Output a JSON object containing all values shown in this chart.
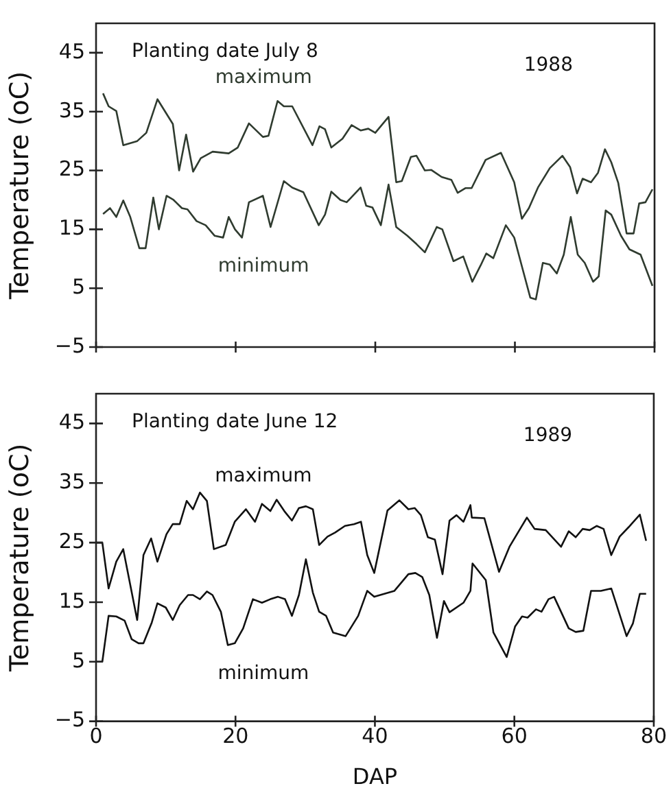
{
  "chart_data": [
    {
      "type": "line",
      "ylabel": "Temperature (oC)",
      "annotations": [
        "Planting date July 8",
        "1988"
      ],
      "xlim": [
        0,
        80
      ],
      "xticks": [
        {
          "value": 0,
          "label": null
        },
        {
          "value": 20,
          "label": null
        },
        {
          "value": 40,
          "label": null
        },
        {
          "value": 60,
          "label": null
        },
        {
          "value": 80,
          "label": null
        }
      ],
      "ylim": [
        -5,
        50
      ],
      "yticks": [
        -5,
        5,
        15,
        25,
        35,
        45
      ],
      "tick_labels": "y",
      "grid": false,
      "legend": false,
      "marker": "none",
      "line_style": "solid",
      "series": [
        {
          "name": "maximum",
          "color": "#2f3b2f",
          "x": [
            1,
            1.8,
            2.9,
            3.9,
            5.9,
            7.2,
            8.8,
            11,
            11.9,
            12.9,
            13.9,
            15,
            16.7,
            19,
            20.3,
            21.9,
            23.9,
            24.7,
            26,
            26.9,
            28.1,
            31,
            32,
            32.8,
            33.7,
            35.3,
            36.6,
            37.9,
            39,
            40,
            41.9,
            43,
            43.8,
            45.1,
            45.9,
            47.1,
            48,
            49.5,
            50.9,
            51.8,
            52.9,
            53.8,
            55.8,
            58,
            59.9,
            61,
            62,
            63.3,
            65,
            66.8,
            67.9,
            68.9,
            69.7,
            70.9,
            71.9,
            72.9,
            73.8,
            74.8,
            76,
            77,
            77.8,
            78.7,
            79.7
          ],
          "values": [
            38.1,
            35.9,
            35.1,
            29.3,
            30,
            31.4,
            37.1,
            32.9,
            25,
            31.1,
            24.8,
            27.1,
            28.2,
            27.9,
            28.9,
            33,
            30.7,
            30.9,
            36.8,
            35.9,
            35.9,
            29.3,
            32.5,
            32,
            28.9,
            30.4,
            32.7,
            31.8,
            32.1,
            31.4,
            34.1,
            23,
            23.2,
            27.3,
            27.5,
            25,
            25.1,
            23.9,
            23.4,
            21.2,
            22,
            22,
            26.8,
            28,
            23,
            16.8,
            18.6,
            22.1,
            25.4,
            27.5,
            25.6,
            21.1,
            23.6,
            23,
            24.6,
            28.6,
            26.4,
            22.9,
            14.3,
            14.3,
            19.4,
            19.6,
            21.8
          ]
        },
        {
          "name": "minimum",
          "color": "#2f3b2f",
          "x": [
            1,
            2,
            2.9,
            3.9,
            4.9,
            6.2,
            7.1,
            8.2,
            9,
            10.1,
            11.1,
            12.3,
            13.1,
            14.4,
            15.7,
            17,
            18.2,
            19,
            19.9,
            20.9,
            21.9,
            23.9,
            25,
            26.9,
            28.1,
            29.7,
            31.9,
            32.8,
            33.7,
            35,
            35.9,
            37.9,
            38.7,
            39.6,
            40.8,
            41.9,
            43,
            44.6,
            45.9,
            47.1,
            48.8,
            49.6,
            51.2,
            52.6,
            53.9,
            55.1,
            55.9,
            56.9,
            58.7,
            59.9,
            62.2,
            63,
            64,
            65,
            66,
            67,
            68,
            69,
            70,
            71.2,
            72,
            73,
            73.8,
            75.2,
            76.4,
            78,
            79.7
          ],
          "values": [
            17.6,
            18.6,
            17.1,
            19.9,
            17.1,
            11.8,
            11.8,
            20.4,
            15,
            20.7,
            20,
            18.6,
            18.4,
            16.4,
            15.7,
            13.9,
            13.6,
            17.1,
            15,
            13.6,
            19.6,
            20.7,
            15.4,
            23.2,
            22.1,
            21.3,
            15.7,
            17.5,
            21.4,
            20,
            19.6,
            22.1,
            19,
            18.7,
            15.7,
            22.6,
            15.4,
            13.9,
            12.5,
            11.1,
            15.4,
            15,
            9.6,
            10.4,
            6.1,
            8.9,
            10.9,
            10.1,
            15.7,
            13.6,
            3.4,
            3.1,
            9.3,
            9,
            7.5,
            10.7,
            17.1,
            10.7,
            9.3,
            6.1,
            7,
            18.2,
            17.5,
            13.9,
            11.6,
            10.7,
            5.4
          ]
        }
      ]
    },
    {
      "type": "line",
      "xlabel": "DAP",
      "ylabel": "Temperature (oC)",
      "annotations": [
        "Planting date June 12",
        "1989"
      ],
      "xlim": [
        0,
        80
      ],
      "xticks": [
        0,
        20,
        40,
        60,
        80
      ],
      "ylim": [
        -5,
        50
      ],
      "yticks": [
        -5,
        5,
        15,
        25,
        35,
        45
      ],
      "grid": false,
      "legend": false,
      "marker": "none",
      "line_style": "solid",
      "series": [
        {
          "name": "maximum",
          "color": "#111111",
          "x": [
            0,
            0.9,
            1.8,
            2.9,
            3.9,
            5.9,
            6.8,
            7.9,
            8.8,
            10.1,
            11,
            12,
            13,
            13.9,
            14.9,
            15.9,
            16.9,
            18.6,
            19.9,
            21.5,
            22.8,
            23.8,
            25,
            25.9,
            27,
            28.1,
            29.1,
            30.1,
            31.1,
            32,
            33.2,
            34.3,
            35.7,
            37,
            38,
            38.9,
            39.9,
            41.8,
            43.5,
            44.8,
            45.7,
            46.6,
            47.6,
            48.6,
            49.7,
            50.7,
            51.7,
            52.7,
            53.7,
            53.9,
            55.7,
            57.8,
            59.3,
            61.8,
            62.9,
            64.5,
            66.7,
            67.8,
            68.8,
            69.8,
            70.8,
            71.8,
            72.8,
            73.9,
            75.1,
            76.4,
            78,
            78.9
          ],
          "values": [
            25,
            25,
            17.3,
            21.8,
            23.9,
            12,
            22.9,
            25.7,
            21.8,
            26.4,
            28.1,
            28.1,
            32,
            30.6,
            33.4,
            32,
            23.9,
            24.6,
            28.5,
            30.6,
            28.5,
            31.5,
            30.3,
            32.2,
            30.3,
            28.7,
            30.8,
            31.1,
            30.6,
            24.6,
            26,
            26.7,
            27.8,
            28.1,
            28.5,
            22.9,
            19.9,
            30.4,
            32.1,
            30.6,
            30.8,
            29.6,
            25.9,
            25.5,
            19.7,
            28.7,
            29.6,
            28.5,
            31.3,
            29.2,
            29.1,
            20.1,
            24.3,
            29.2,
            27.3,
            27.1,
            24.3,
            26.9,
            25.9,
            27.3,
            27.1,
            27.8,
            27.3,
            22.9,
            26,
            27.6,
            29.7,
            25.3
          ]
        },
        {
          "name": "minimum",
          "color": "#111111",
          "x": [
            0,
            0.9,
            1.8,
            2.9,
            4.1,
            5.1,
            6.1,
            6.8,
            8,
            8.8,
            10,
            11,
            12,
            13.2,
            13.9,
            14.9,
            15.9,
            16.7,
            17.9,
            18.9,
            19.9,
            21.1,
            22.5,
            23.8,
            25,
            26.1,
            27.1,
            28.1,
            29.1,
            30.1,
            31.1,
            32,
            33,
            34,
            35.8,
            37.6,
            38.9,
            39.9,
            42.8,
            44.8,
            45.8,
            46.8,
            47.8,
            48.9,
            49.9,
            50.7,
            52.7,
            53.7,
            54,
            55.9,
            57,
            58.9,
            60.1,
            61.1,
            61.9,
            63.1,
            63.9,
            64.9,
            65.7,
            67.8,
            68.8,
            69.9,
            71,
            72.4,
            73.9,
            76.1,
            77,
            78,
            78.9
          ],
          "values": [
            5,
            5,
            12.7,
            12.6,
            11.9,
            8.8,
            8.1,
            8.1,
            11.6,
            14.8,
            14.1,
            12,
            14.5,
            16.2,
            16.2,
            15.5,
            16.8,
            16.2,
            13.4,
            7.8,
            8.1,
            10.6,
            15.5,
            14.9,
            15.5,
            15.9,
            15.5,
            12.7,
            16.2,
            22.2,
            16.6,
            13.4,
            12.7,
            9.9,
            9.3,
            12.7,
            16.9,
            15.9,
            16.9,
            19.7,
            19.9,
            19.2,
            16.2,
            9,
            15.2,
            13.3,
            14.9,
            16.9,
            21.5,
            18.7,
            9.9,
            5.8,
            10.9,
            12.6,
            12.4,
            13.8,
            13.4,
            15.5,
            15.9,
            10.6,
            10,
            10.2,
            16.9,
            16.9,
            17.3,
            9.3,
            11.4,
            16.4,
            16.4
          ]
        }
      ]
    }
  ]
}
